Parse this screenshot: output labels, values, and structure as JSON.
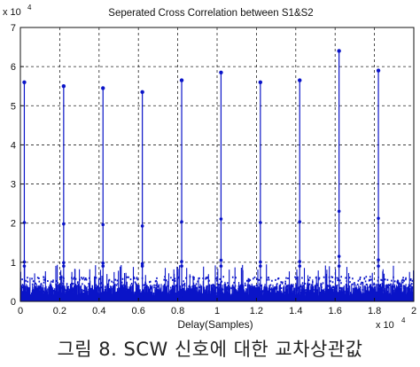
{
  "chart_data": {
    "type": "stem",
    "title": "Seperated Cross Correlation between S1&S2",
    "xlabel": "Delay(Samples)",
    "ylabel": "",
    "x_multiplier_label": "x 10",
    "x_multiplier_exp": "4",
    "y_multiplier_label": "x 10",
    "y_multiplier_exp": "4",
    "xlim": [
      0,
      2
    ],
    "ylim": [
      0,
      7
    ],
    "x_ticks": [
      "0",
      "0.2",
      "0.4",
      "0.6",
      "0.8",
      "1",
      "1.2",
      "1.4",
      "1.6",
      "1.8",
      "2"
    ],
    "y_ticks": [
      "0",
      "1",
      "2",
      "3",
      "4",
      "5",
      "6",
      "7"
    ],
    "grid": true,
    "color": "#0a14c8",
    "peaks": [
      {
        "x": 0.02,
        "y": 5.6
      },
      {
        "x": 0.22,
        "y": 5.5
      },
      {
        "x": 0.42,
        "y": 5.45
      },
      {
        "x": 0.62,
        "y": 5.35
      },
      {
        "x": 0.82,
        "y": 5.65
      },
      {
        "x": 1.02,
        "y": 5.85
      },
      {
        "x": 1.22,
        "y": 5.6
      },
      {
        "x": 1.42,
        "y": 5.65
      },
      {
        "x": 1.62,
        "y": 6.4
      },
      {
        "x": 1.82,
        "y": 5.9
      }
    ],
    "noise_floor": {
      "typical": 0.35,
      "max": 0.95
    }
  },
  "caption": "그림 8. SCW 신호에 대한 교차상관값"
}
